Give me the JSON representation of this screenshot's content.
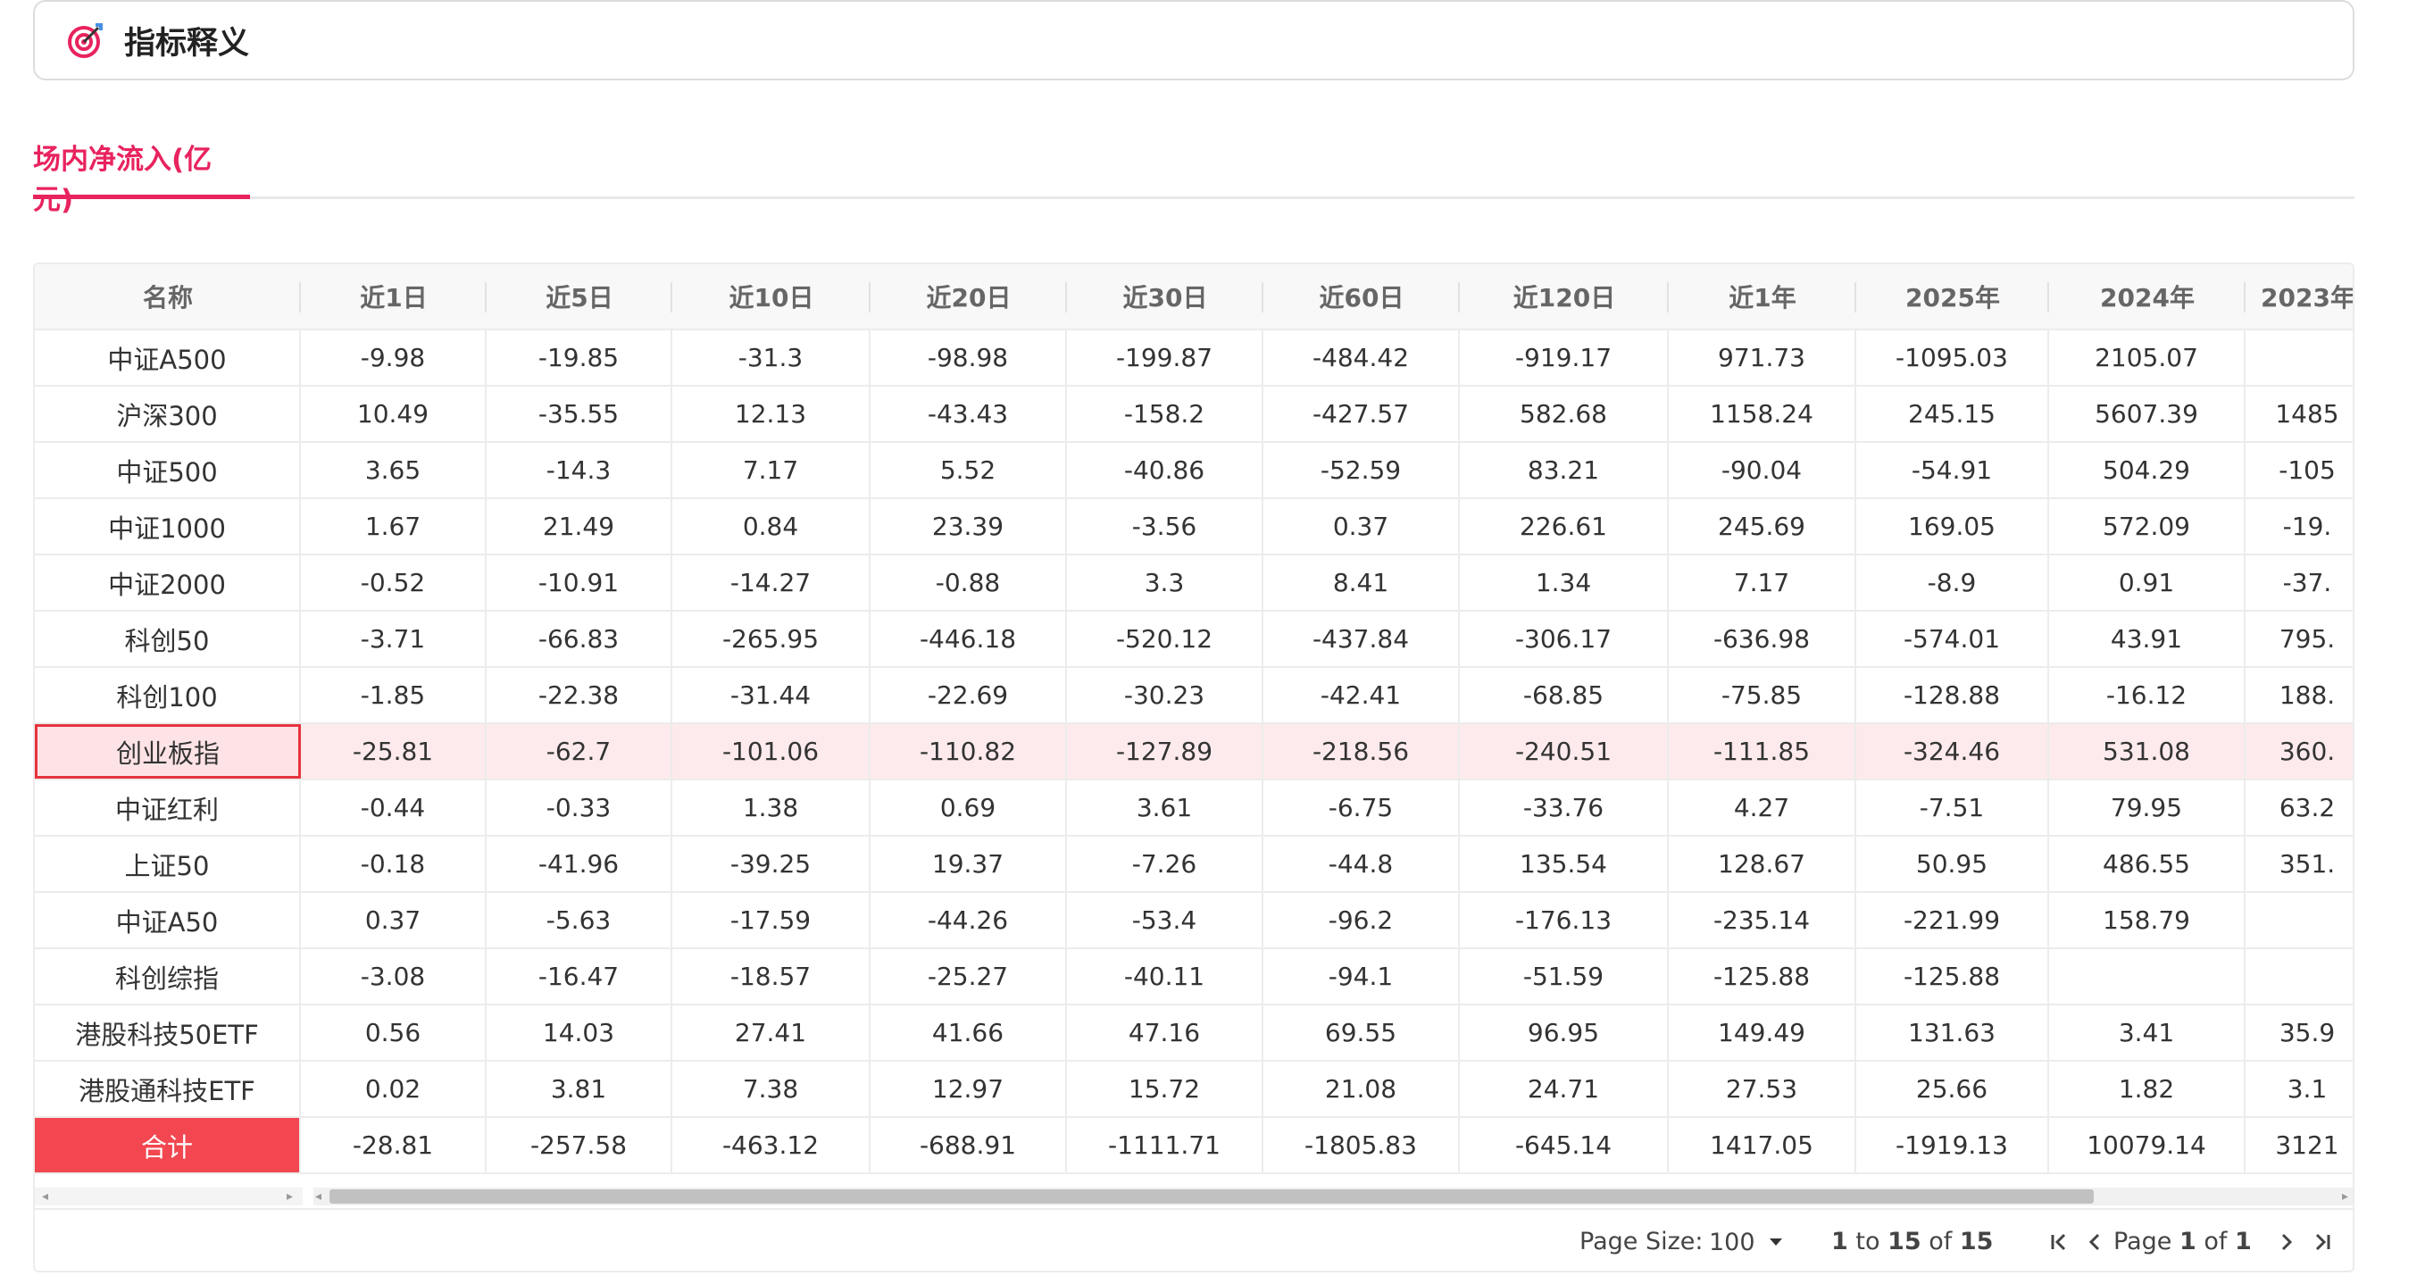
{
  "header": {
    "title": "指标释义",
    "icon": "target-icon"
  },
  "tabs": [
    {
      "label": "场内净流入(亿元)",
      "active": true
    }
  ],
  "table": {
    "columns": [
      "名称",
      "近1日",
      "近5日",
      "近10日",
      "近20日",
      "近30日",
      "近60日",
      "近120日",
      "近1年",
      "2025年",
      "2024年",
      "2023年"
    ],
    "rows": [
      {
        "name": "中证A500",
        "values": [
          "-9.98",
          "-19.85",
          "-31.3",
          "-98.98",
          "-199.87",
          "-484.42",
          "-919.17",
          "971.73",
          "-1095.03",
          "2105.07",
          ""
        ]
      },
      {
        "name": "沪深300",
        "values": [
          "10.49",
          "-35.55",
          "12.13",
          "-43.43",
          "-158.2",
          "-427.57",
          "582.68",
          "1158.24",
          "245.15",
          "5607.39",
          "1485"
        ]
      },
      {
        "name": "中证500",
        "values": [
          "3.65",
          "-14.3",
          "7.17",
          "5.52",
          "-40.86",
          "-52.59",
          "83.21",
          "-90.04",
          "-54.91",
          "504.29",
          "-105"
        ]
      },
      {
        "name": "中证1000",
        "values": [
          "1.67",
          "21.49",
          "0.84",
          "23.39",
          "-3.56",
          "0.37",
          "226.61",
          "245.69",
          "169.05",
          "572.09",
          "-19."
        ]
      },
      {
        "name": "中证2000",
        "values": [
          "-0.52",
          "-10.91",
          "-14.27",
          "-0.88",
          "3.3",
          "8.41",
          "1.34",
          "7.17",
          "-8.9",
          "0.91",
          "-37."
        ]
      },
      {
        "name": "科创50",
        "values": [
          "-3.71",
          "-66.83",
          "-265.95",
          "-446.18",
          "-520.12",
          "-437.84",
          "-306.17",
          "-636.98",
          "-574.01",
          "43.91",
          "795."
        ]
      },
      {
        "name": "科创100",
        "values": [
          "-1.85",
          "-22.38",
          "-31.44",
          "-22.69",
          "-30.23",
          "-42.41",
          "-68.85",
          "-75.85",
          "-128.88",
          "-16.12",
          "188."
        ]
      },
      {
        "name": "创业板指",
        "values": [
          "-25.81",
          "-62.7",
          "-101.06",
          "-110.82",
          "-127.89",
          "-218.56",
          "-240.51",
          "-111.85",
          "-324.46",
          "531.08",
          "360."
        ],
        "highlight": true
      },
      {
        "name": "中证红利",
        "values": [
          "-0.44",
          "-0.33",
          "1.38",
          "0.69",
          "3.61",
          "-6.75",
          "-33.76",
          "4.27",
          "-7.51",
          "79.95",
          "63.2"
        ]
      },
      {
        "name": "上证50",
        "values": [
          "-0.18",
          "-41.96",
          "-39.25",
          "19.37",
          "-7.26",
          "-44.8",
          "135.54",
          "128.67",
          "50.95",
          "486.55",
          "351."
        ]
      },
      {
        "name": "中证A50",
        "values": [
          "0.37",
          "-5.63",
          "-17.59",
          "-44.26",
          "-53.4",
          "-96.2",
          "-176.13",
          "-235.14",
          "-221.99",
          "158.79",
          ""
        ]
      },
      {
        "name": "科创综指",
        "values": [
          "-3.08",
          "-16.47",
          "-18.57",
          "-25.27",
          "-40.11",
          "-94.1",
          "-51.59",
          "-125.88",
          "-125.88",
          "",
          ""
        ]
      },
      {
        "name": "港股科技50ETF",
        "values": [
          "0.56",
          "14.03",
          "27.41",
          "41.66",
          "47.16",
          "69.55",
          "96.95",
          "149.49",
          "131.63",
          "3.41",
          "35.9"
        ]
      },
      {
        "name": "港股通科技ETF",
        "values": [
          "0.02",
          "3.81",
          "7.38",
          "12.97",
          "15.72",
          "21.08",
          "24.71",
          "27.53",
          "25.66",
          "1.82",
          "3.1"
        ]
      },
      {
        "name": "合计",
        "values": [
          "-28.81",
          "-257.58",
          "-463.12",
          "-688.91",
          "-1111.71",
          "-1805.83",
          "-645.14",
          "1417.05",
          "-1919.13",
          "10079.14",
          "3121"
        ],
        "total": true
      }
    ]
  },
  "pagination": {
    "page_size_label": "Page Size:",
    "page_size_value": "100",
    "range_from": "1",
    "range_to": "15",
    "range_total": "15",
    "to_word": "to",
    "of_word": "of",
    "page_word": "Page",
    "page_current": "1",
    "page_total": "1"
  },
  "colors": {
    "accent": "#e8235e",
    "highlight_bg": "#fdeaec",
    "highlight_border": "#e5343f",
    "total_bg": "#f24750"
  }
}
